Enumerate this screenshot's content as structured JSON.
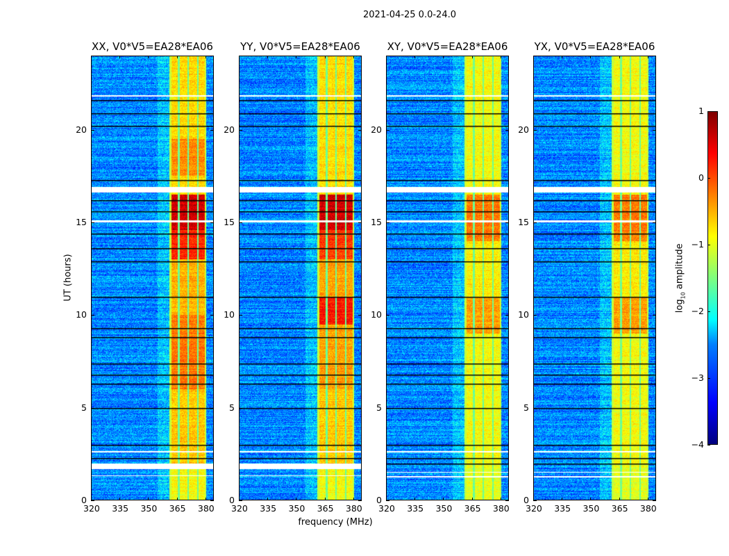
{
  "chart_data": {
    "type": "heatmap",
    "title": "2021-04-25 0.0-24.0",
    "xlabel": "frequency (MHz)",
    "ylabel": "UT (hours)",
    "xlim": [
      320,
      384.4
    ],
    "ylim": [
      0,
      24
    ],
    "xticks": [
      320,
      335,
      350,
      365,
      380
    ],
    "yticks": [
      0,
      5,
      10,
      15,
      20
    ],
    "rfi_band_mhz": [
      361,
      380.5
    ],
    "rfi_band_gaps_mhz": [
      366,
      371,
      376
    ],
    "colorbar": {
      "label_prefix": "log",
      "label_sub": "10",
      "label_suffix": " amplitude",
      "range": [
        -4,
        1
      ],
      "ticks": [
        "1",
        "0",
        "−1",
        "−2",
        "−3",
        "−4"
      ],
      "tick_values": [
        1,
        0,
        -1,
        -2,
        -3,
        -4
      ],
      "colormap": "jet"
    },
    "background_level": -2.7,
    "panels": [
      {
        "title": "XX, V0*V5=EA28*EA06",
        "band_levels": [
          [
            0,
            2,
            -0.9
          ],
          [
            2,
            6,
            -0.6
          ],
          [
            6,
            10,
            -0.2
          ],
          [
            10,
            13,
            -0.5
          ],
          [
            13,
            14.6,
            0.2
          ],
          [
            14.6,
            16.5,
            0.6
          ],
          [
            16.5,
            19,
            -0.7
          ],
          [
            17.5,
            19.5,
            -0.3
          ],
          [
            19.5,
            24,
            -0.7
          ]
        ],
        "flagged_white_hours": [
          [
            1.7,
            2.0
          ],
          [
            16.6,
            16.9
          ],
          [
            15.0,
            15.1
          ],
          [
            1.3,
            1.35
          ],
          [
            2.6,
            2.65
          ],
          [
            21.8,
            21.85
          ]
        ],
        "flagged_black_hours": [
          2.3,
          3.0,
          5.0,
          6.3,
          6.8,
          7.4,
          8.8,
          9.3,
          11.0,
          12.9,
          13.6,
          14.4,
          15.6,
          16.2,
          17.3,
          20.2,
          20.9,
          21.6
        ]
      },
      {
        "title": "YY, V0*V5=EA28*EA06",
        "band_levels": [
          [
            0,
            2,
            -0.9
          ],
          [
            2,
            6,
            -0.6
          ],
          [
            6,
            9.5,
            -0.4
          ],
          [
            9.5,
            11,
            0.3
          ],
          [
            11,
            13,
            -0.4
          ],
          [
            13,
            14.6,
            0.1
          ],
          [
            14.6,
            16.5,
            0.6
          ],
          [
            16.5,
            24,
            -0.7
          ]
        ],
        "flagged_white_hours": [
          [
            1.7,
            2.0
          ],
          [
            16.6,
            16.9
          ],
          [
            15.0,
            15.1
          ],
          [
            1.3,
            1.35
          ],
          [
            2.6,
            2.65
          ],
          [
            21.8,
            21.85
          ]
        ],
        "flagged_black_hours": [
          2.3,
          3.0,
          5.0,
          6.3,
          6.8,
          7.4,
          8.8,
          9.3,
          11.0,
          12.9,
          13.6,
          14.4,
          15.6,
          16.2,
          17.3,
          20.2,
          20.9,
          21.6
        ]
      },
      {
        "title": "XY, V0*V5=EA28*EA06",
        "band_levels": [
          [
            0,
            2,
            -1.0
          ],
          [
            2,
            9,
            -0.9
          ],
          [
            9,
            11,
            -0.4
          ],
          [
            11,
            14,
            -0.8
          ],
          [
            14,
            16.5,
            -0.2
          ],
          [
            16.5,
            24,
            -0.9
          ]
        ],
        "flagged_white_hours": [
          [
            1.25,
            1.3
          ],
          [
            1.5,
            1.55
          ],
          [
            16.6,
            16.9
          ],
          [
            15.0,
            15.1
          ],
          [
            2.6,
            2.65
          ],
          [
            21.8,
            21.85
          ]
        ],
        "flagged_black_hours": [
          2.0,
          2.3,
          3.0,
          5.0,
          6.3,
          6.8,
          7.4,
          8.8,
          9.3,
          11.0,
          12.9,
          13.6,
          14.4,
          15.6,
          16.2,
          17.3,
          20.2,
          20.9,
          21.6
        ]
      },
      {
        "title": "YX, V0*V5=EA28*EA06",
        "band_levels": [
          [
            0,
            2,
            -1.0
          ],
          [
            2,
            9,
            -0.9
          ],
          [
            9,
            11,
            -0.4
          ],
          [
            11,
            14,
            -0.8
          ],
          [
            14,
            16.5,
            -0.2
          ],
          [
            16.5,
            24,
            -0.9
          ]
        ],
        "flagged_white_hours": [
          [
            1.25,
            1.3
          ],
          [
            1.5,
            1.55
          ],
          [
            16.6,
            16.9
          ],
          [
            15.0,
            15.1
          ],
          [
            2.6,
            2.65
          ],
          [
            21.8,
            21.85
          ]
        ],
        "flagged_black_hours": [
          2.0,
          2.3,
          3.0,
          5.0,
          6.3,
          6.8,
          7.4,
          8.8,
          9.3,
          11.0,
          12.9,
          13.6,
          14.4,
          15.6,
          16.2,
          17.3,
          20.2,
          20.9,
          21.6
        ]
      }
    ]
  }
}
